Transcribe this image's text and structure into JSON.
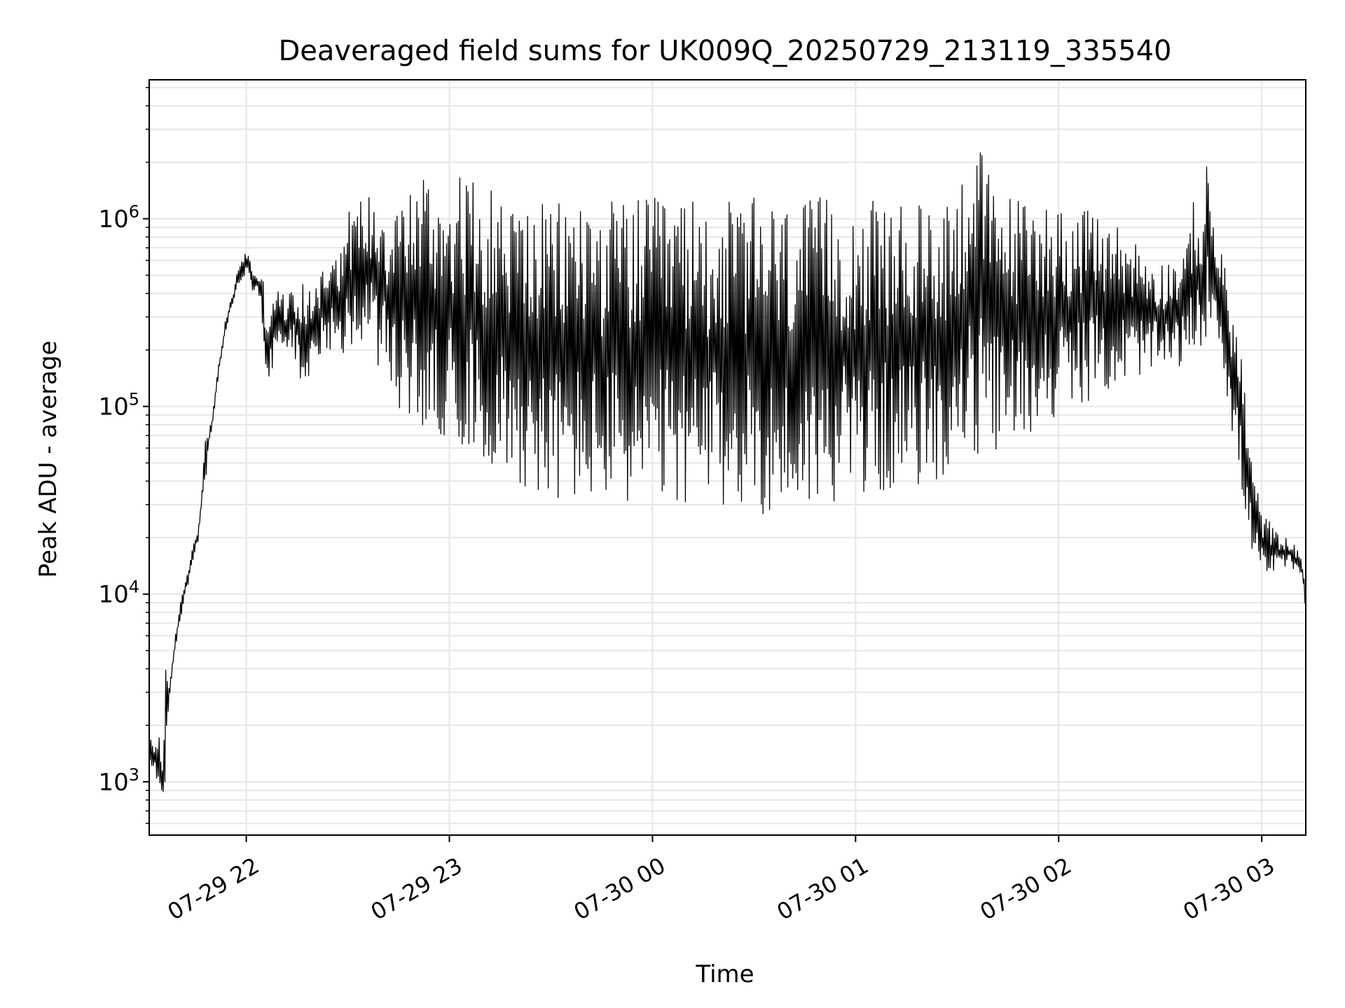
{
  "chart_data": {
    "type": "line",
    "title": "Deaveraged field sums for UK009Q_20250729_213119_335540",
    "xlabel": "Time",
    "ylabel": "Peak ADU - average",
    "y_scale": "log",
    "xlim": [
      "2025-07-29 21:31:19",
      "2025-07-30 03:13:00"
    ],
    "ylim": [
      520,
      5500000
    ],
    "grid": true,
    "line_color": "#000000",
    "grid_color": "#e6e6e6",
    "x_ticks": [
      {
        "time": "2025-07-29 22:00",
        "label": "07-29 22"
      },
      {
        "time": "2025-07-29 23:00",
        "label": "07-29 23"
      },
      {
        "time": "2025-07-30 00:00",
        "label": "07-30 00"
      },
      {
        "time": "2025-07-30 01:00",
        "label": "07-30 01"
      },
      {
        "time": "2025-07-30 02:00",
        "label": "07-30 02"
      },
      {
        "time": "2025-07-30 03:00",
        "label": "07-30 03"
      }
    ],
    "y_ticks": [
      {
        "value": 1000,
        "base": "10",
        "exp": "3"
      },
      {
        "value": 10000,
        "base": "10",
        "exp": "4"
      },
      {
        "value": 100000,
        "base": "10",
        "exp": "5"
      },
      {
        "value": 1000000,
        "base": "10",
        "exp": "6"
      }
    ],
    "series": [
      {
        "x": [
          "2025-07-29 21:31:19",
          "2025-07-29 21:32:30",
          "2025-07-29 21:33:30",
          "2025-07-29 21:34:30",
          "2025-07-29 21:35:00",
          "2025-07-29 21:35:30",
          "2025-07-29 21:36:00",
          "2025-07-29 21:37:00",
          "2025-07-29 21:38:00",
          "2025-07-29 21:38:30",
          "2025-07-29 21:39:00",
          "2025-07-29 21:40:00",
          "2025-07-29 21:41:00",
          "2025-07-29 21:42:00",
          "2025-07-29 21:44:00",
          "2025-07-29 21:46:00",
          "2025-07-29 21:48:00",
          "2025-07-29 21:50:00",
          "2025-07-29 21:52:00",
          "2025-07-29 21:54:00",
          "2025-07-29 21:55:00",
          "2025-07-29 21:56:00",
          "2025-07-29 21:58:00",
          "2025-07-29 22:00:00",
          "2025-07-29 22:02:00",
          "2025-07-29 22:04:00",
          "2025-07-29 22:05:00",
          "2025-07-29 22:06:00",
          "2025-07-29 22:08:00",
          "2025-07-29 22:10:00",
          "2025-07-29 22:12:00",
          "2025-07-29 22:14:00",
          "2025-07-29 22:16:00",
          "2025-07-29 22:18:00",
          "2025-07-29 22:20:00",
          "2025-07-29 22:22:00",
          "2025-07-29 22:24:00",
          "2025-07-29 22:25:00",
          "2025-07-29 22:27:00",
          "2025-07-29 22:28:00",
          "2025-07-29 22:30:00",
          "2025-07-29 22:33:00",
          "2025-07-29 22:36:00",
          "2025-07-29 22:38:00",
          "2025-07-29 22:40:00",
          "2025-07-29 22:42:00",
          "2025-07-29 22:44:00",
          "2025-07-29 22:46:00",
          "2025-07-29 22:48:00",
          "2025-07-29 22:50:00",
          "2025-07-29 22:52:00",
          "2025-07-29 22:54:00",
          "2025-07-29 22:56:00",
          "2025-07-29 22:58:00",
          "2025-07-29 23:00:00",
          "2025-07-29 23:05:00",
          "2025-07-29 23:10:00",
          "2025-07-29 23:15:00",
          "2025-07-29 23:20:00",
          "2025-07-29 23:25:00",
          "2025-07-29 23:30:00",
          "2025-07-29 23:35:00",
          "2025-07-29 23:40:00",
          "2025-07-29 23:45:00",
          "2025-07-29 23:50:00",
          "2025-07-29 23:55:00",
          "2025-07-30 00:00:00",
          "2025-07-30 00:10:00",
          "2025-07-30 00:20:00",
          "2025-07-30 00:30:00",
          "2025-07-30 00:40:00",
          "2025-07-30 00:50:00",
          "2025-07-30 01:00:00",
          "2025-07-30 01:10:00",
          "2025-07-30 01:20:00",
          "2025-07-30 01:25:00",
          "2025-07-30 01:30:00",
          "2025-07-30 01:35:00",
          "2025-07-30 01:40:00",
          "2025-07-30 01:45:00",
          "2025-07-30 01:50:00",
          "2025-07-30 01:55:00",
          "2025-07-30 02:00:00",
          "2025-07-30 02:05:00",
          "2025-07-30 02:10:00",
          "2025-07-30 02:15:00",
          "2025-07-30 02:20:00",
          "2025-07-30 02:25:00",
          "2025-07-30 02:30:00",
          "2025-07-30 02:35:00",
          "2025-07-30 02:38:00",
          "2025-07-30 02:40:00",
          "2025-07-30 02:42:00",
          "2025-07-30 02:44:00",
          "2025-07-30 02:46:00",
          "2025-07-30 02:48:00",
          "2025-07-30 02:50:00",
          "2025-07-30 02:52:00",
          "2025-07-30 02:54:00",
          "2025-07-30 02:56:00",
          "2025-07-30 02:58:00",
          "2025-07-30 03:00:00",
          "2025-07-30 03:02:00",
          "2025-07-30 03:04:00",
          "2025-07-30 03:06:00",
          "2025-07-30 03:08:00",
          "2025-07-30 03:10:00",
          "2025-07-30 03:12:00",
          "2025-07-30 03:13:00"
        ],
        "upper": [
          2000,
          1600,
          1900,
          1800,
          1200,
          1400,
          6700,
          3000,
          4000,
          5000,
          6000,
          8000,
          10000,
          12000,
          18000,
          25000,
          70000,
          90000,
          180000,
          300000,
          350000,
          400000,
          600000,
          700000,
          550000,
          500000,
          480000,
          400000,
          450000,
          420000,
          380000,
          450000,
          420000,
          500000,
          450000,
          550000,
          600000,
          900000,
          650000,
          800000,
          1100000,
          1300000,
          1400000,
          1400000,
          1400000,
          1200000,
          1500000,
          1400000,
          1500000,
          1600000,
          2000000,
          1700000,
          1500000,
          1600000,
          1700000,
          1700000,
          1600000,
          1400000,
          1300000,
          1200000,
          1200000,
          1300000,
          1400000,
          1250000,
          1300000,
          1300000,
          1300000,
          1300000,
          1250000,
          1300000,
          1200000,
          1300000,
          1300000,
          1200000,
          1200000,
          1300000,
          1500000,
          3500000,
          1600000,
          1400000,
          1300000,
          1300000,
          1200000,
          1100000,
          1100000,
          1000000,
          900000,
          700000,
          600000,
          650000,
          700000,
          1500000,
          900000,
          2200000,
          900000,
          700000,
          450000,
          300000,
          200000,
          80000,
          40000,
          30000,
          25000,
          22000,
          20000,
          20000,
          18000,
          15000,
          11000
        ],
        "lower": [
          1200,
          1100,
          900,
          950,
          800,
          850,
          900,
          2500,
          3500,
          4200,
          5000,
          6500,
          8000,
          10000,
          13000,
          20000,
          40000,
          80000,
          150000,
          250000,
          300000,
          350000,
          450000,
          500000,
          400000,
          380000,
          200000,
          90000,
          150000,
          200000,
          180000,
          200000,
          130000,
          85000,
          200000,
          180000,
          200000,
          200000,
          220000,
          180000,
          200000,
          200000,
          200000,
          180000,
          150000,
          110000,
          100000,
          80000,
          90000,
          80000,
          70000,
          60000,
          65000,
          70000,
          70000,
          60000,
          50000,
          45000,
          40000,
          35000,
          30000,
          30000,
          30000,
          30000,
          30000,
          29000,
          28000,
          30000,
          28000,
          27000,
          25000,
          30000,
          33000,
          35000,
          38000,
          40000,
          45000,
          50000,
          55000,
          60000,
          65000,
          80000,
          90000,
          100000,
          110000,
          120000,
          130000,
          150000,
          150000,
          160000,
          170000,
          180000,
          200000,
          250000,
          300000,
          200000,
          100000,
          60000,
          35000,
          20000,
          15000,
          12000,
          12000,
          13000,
          14000,
          14000,
          13000,
          12000,
          8000
        ]
      }
    ]
  }
}
